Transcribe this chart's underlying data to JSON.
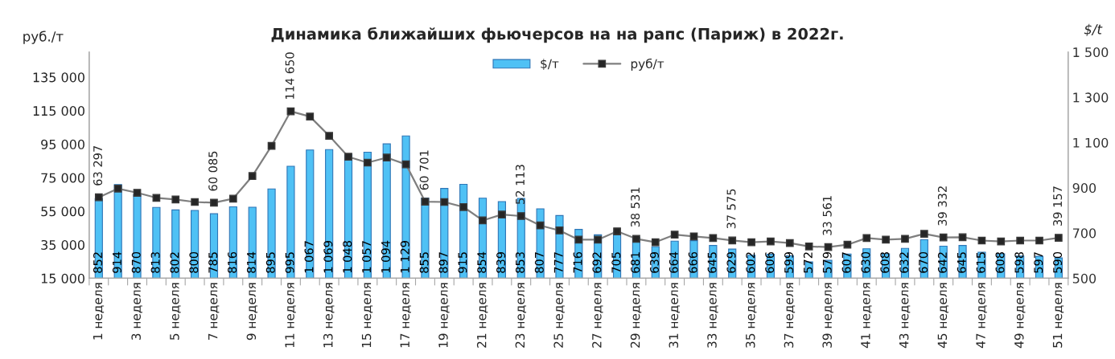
{
  "chart_data": {
    "type": "bar",
    "title": "Динамика ближайших фьючерсов на на рапс (Париж) в 2022г.",
    "ylabel": "руб./т",
    "y2label": "$/t",
    "categories": [
      "1 неделя",
      null,
      "3 неделя",
      null,
      "5 неделя",
      null,
      "7 неделя",
      null,
      "9 неделя",
      null,
      "11 неделя",
      null,
      "13 неделя",
      null,
      "15 неделя",
      null,
      "17 неделя",
      null,
      "19 неделя",
      null,
      "21 неделя",
      null,
      "23 неделя",
      null,
      "25 неделя",
      null,
      "27 неделя",
      null,
      "29 неделя",
      null,
      "31 неделя",
      null,
      "33 неделя",
      null,
      "35 неделя",
      null,
      "37 неделя",
      null,
      "39 неделя",
      null,
      "41 неделя",
      null,
      "43 неделя",
      null,
      "45 неделя",
      null,
      "47 неделя",
      null,
      "49 неделя",
      null,
      "51 неделя"
    ],
    "series": [
      {
        "name": "$/т",
        "axis": "y2",
        "color": "#4fc1f5",
        "values": [
          852,
          914,
          870,
          813,
          802,
          800,
          785,
          816,
          814,
          895,
          995,
          1067,
          1069,
          1048,
          1057,
          1094,
          1129,
          855,
          897,
          915,
          854,
          839,
          853,
          807,
          777,
          716,
          692,
          705,
          681,
          639,
          664,
          666,
          645,
          629,
          602,
          606,
          599,
          572,
          579,
          607,
          630,
          608,
          632,
          670,
          642,
          645,
          615,
          608,
          598,
          597,
          590
        ],
        "value_labels": [
          "852",
          "914",
          "870",
          "813",
          "802",
          "800",
          "785",
          "816",
          "814",
          "895",
          "995",
          "1 067",
          "1 069",
          "1 048",
          "1 057",
          "1 094",
          "1 129",
          "855",
          "897",
          "915",
          "854",
          "839",
          "853",
          "807",
          "777",
          "716",
          "692",
          "705",
          "681",
          "639",
          "664",
          "666",
          "645",
          "629",
          "602",
          "606",
          "599",
          "572",
          "579",
          "607",
          "630",
          "608",
          "632",
          "670",
          "642",
          "645",
          "615",
          "608",
          "598",
          "597",
          "590"
        ]
      },
      {
        "name": "руб/т",
        "type": "line",
        "axis": "y",
        "color": "#7f7f7f",
        "marker": "square",
        "line_style": "solid",
        "values": [
          63297,
          68500,
          66000,
          63000,
          62000,
          60500,
          60085,
          62500,
          76000,
          94000,
          114650,
          111500,
          100000,
          87500,
          84000,
          87000,
          83000,
          60701,
          60500,
          57500,
          49500,
          53000,
          52113,
          46500,
          43500,
          38000,
          38000,
          43000,
          38531,
          36500,
          41000,
          40000,
          39000,
          37575,
          36500,
          37000,
          36000,
          34000,
          33561,
          35000,
          39000,
          38000,
          38500,
          41500,
          39332,
          39500,
          37500,
          37000,
          37500,
          37500,
          39157
        ],
        "value_labels": [
          "63 297",
          null,
          null,
          null,
          null,
          null,
          "60 085",
          null,
          null,
          null,
          "114 650",
          null,
          null,
          null,
          null,
          null,
          null,
          "60 701",
          null,
          null,
          null,
          null,
          "52 113",
          null,
          null,
          null,
          null,
          null,
          "38 531",
          null,
          null,
          null,
          null,
          "37 575",
          null,
          null,
          null,
          null,
          "33 561",
          null,
          null,
          null,
          null,
          null,
          "39 332",
          null,
          null,
          null,
          null,
          null,
          "39 157"
        ]
      }
    ],
    "ylim": [
      15000,
      150000
    ],
    "yticks": [
      {
        "value": 15000,
        "label": "15 000"
      },
      {
        "value": 35000,
        "label": "35 000"
      },
      {
        "value": 55000,
        "label": "55 000"
      },
      {
        "value": 75000,
        "label": "75 000"
      },
      {
        "value": 95000,
        "label": "95 000"
      },
      {
        "value": 115000,
        "label": "115 000"
      },
      {
        "value": 135000,
        "label": "135 000"
      }
    ],
    "y2lim": [
      500,
      1500
    ],
    "y2ticks": [
      500,
      700,
      900,
      {
        "value": 1100,
        "label": "1 100"
      },
      {
        "value": 1300,
        "label": "1 300"
      },
      {
        "value": 1500,
        "label": "1 500"
      }
    ],
    "grid": false,
    "legend": "top"
  }
}
